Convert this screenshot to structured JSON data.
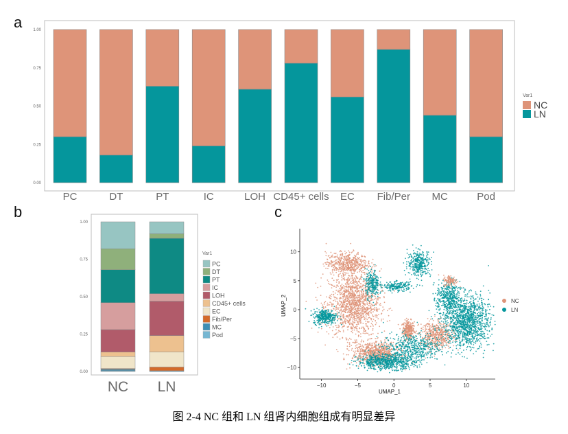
{
  "caption": "图 2-4 NC 组和 LN 组肾内细胞组成有明显差异",
  "colors": {
    "NC": "#DE9479",
    "LN": "#05969C",
    "grid_bg": "#ffffff"
  },
  "chart_data": [
    {
      "panel": "a",
      "type": "bar",
      "stacked": true,
      "categories": [
        "PC",
        "DT",
        "PT",
        "IC",
        "LOH",
        "CD45+ cells",
        "EC",
        "Fib/Per",
        "MC",
        "Pod"
      ],
      "series": [
        {
          "name": "LN",
          "color": "#05969C",
          "values": [
            0.3,
            0.18,
            0.63,
            0.24,
            0.61,
            0.78,
            0.56,
            0.87,
            0.44,
            0.3
          ]
        },
        {
          "name": "NC",
          "color": "#DE9479",
          "values": [
            0.7,
            0.82,
            0.37,
            0.76,
            0.39,
            0.22,
            0.44,
            0.13,
            0.56,
            0.7
          ]
        }
      ],
      "yticks": [
        "0.00",
        "0.25",
        "0.50",
        "0.75",
        "1.00"
      ],
      "ylim": [
        0,
        1
      ],
      "legend_title": "Var1",
      "legend_entries": [
        "NC",
        "LN"
      ],
      "legend_position": "right"
    },
    {
      "panel": "b",
      "type": "bar",
      "stacked": true,
      "categories": [
        "NC",
        "LN"
      ],
      "series": [
        {
          "name": "Pod",
          "color": "#76B7D2",
          "values": [
            0.005,
            0.0
          ]
        },
        {
          "name": "MC",
          "color": "#3E8FB5",
          "values": [
            0.01,
            0.005
          ]
        },
        {
          "name": "Fib/Per",
          "color": "#D46A29",
          "values": [
            0.005,
            0.025
          ]
        },
        {
          "name": "EC",
          "color": "#F0E5C9",
          "values": [
            0.08,
            0.1
          ]
        },
        {
          "name": "CD45+ cells",
          "color": "#EDC18F",
          "values": [
            0.03,
            0.11
          ]
        },
        {
          "name": "LOH",
          "color": "#B15B6A",
          "values": [
            0.15,
            0.23
          ]
        },
        {
          "name": "IC",
          "color": "#D69E9E",
          "values": [
            0.18,
            0.05
          ]
        },
        {
          "name": "PT",
          "color": "#0E8A84",
          "values": [
            0.22,
            0.37
          ]
        },
        {
          "name": "DT",
          "color": "#8FB07B",
          "values": [
            0.14,
            0.03
          ]
        },
        {
          "name": "PC",
          "color": "#97C5C2",
          "values": [
            0.18,
            0.08
          ]
        }
      ],
      "yticks": [
        "0.00",
        "0.25",
        "0.50",
        "0.75",
        "1.00"
      ],
      "ylim": [
        0,
        1
      ],
      "legend_title": "Var1",
      "legend_entries": [
        "PC",
        "DT",
        "PT",
        "IC",
        "LOH",
        "CD45+ cells",
        "EC",
        "Fib/Per",
        "MC",
        "Pod"
      ],
      "legend_position": "right"
    },
    {
      "panel": "c",
      "type": "scatter",
      "xlabel": "UMAP_1",
      "ylabel": "UMAP_2",
      "xticks": [
        -10,
        -5,
        0,
        5,
        10
      ],
      "yticks": [
        -10,
        -5,
        0,
        5,
        10
      ],
      "xlim": [
        -13,
        14
      ],
      "ylim": [
        -12,
        14
      ],
      "legend_entries": [
        "NC",
        "LN"
      ],
      "legend_position": "right",
      "clusters": [
        {
          "group": "NC",
          "cx": 2.0,
          "cy": -3.5,
          "sx": 0.5,
          "sy": 1.0,
          "n": 300
        },
        {
          "group": "NC",
          "cx": -5.5,
          "cy": 1.0,
          "sx": 2.2,
          "sy": 3.5,
          "n": 1400
        },
        {
          "group": "LN",
          "cx": -9.5,
          "cy": -1.2,
          "sx": 1.0,
          "sy": 0.8,
          "n": 350
        },
        {
          "group": "NC",
          "cx": -6.5,
          "cy": 8.0,
          "sx": 1.8,
          "sy": 1.2,
          "n": 500
        },
        {
          "group": "LN",
          "cx": -3.0,
          "cy": 4.5,
          "sx": 0.6,
          "sy": 1.5,
          "n": 250
        },
        {
          "group": "NC",
          "cx": -2.5,
          "cy": -7.5,
          "sx": 2.0,
          "sy": 1.2,
          "n": 700
        },
        {
          "group": "LN",
          "cx": -1.0,
          "cy": -9.0,
          "sx": 2.5,
          "sy": 0.8,
          "n": 700
        },
        {
          "group": "LN",
          "cx": 3.5,
          "cy": 8.0,
          "sx": 1.0,
          "sy": 1.4,
          "n": 350
        },
        {
          "group": "LN",
          "cx": 0.5,
          "cy": 4.0,
          "sx": 1.2,
          "sy": 0.5,
          "n": 200
        },
        {
          "group": "NC",
          "cx": 6.0,
          "cy": -4.5,
          "sx": 1.5,
          "sy": 1.5,
          "n": 500
        },
        {
          "group": "LN",
          "cx": 10.0,
          "cy": -2.0,
          "sx": 2.0,
          "sy": 2.8,
          "n": 1300
        },
        {
          "group": "LN",
          "cx": 7.5,
          "cy": 2.0,
          "sx": 1.0,
          "sy": 1.8,
          "n": 400
        },
        {
          "group": "NC",
          "cx": 7.8,
          "cy": 5.0,
          "sx": 0.6,
          "sy": 0.6,
          "n": 120
        },
        {
          "group": "LN",
          "cx": 2.5,
          "cy": -6.5,
          "sx": 2.5,
          "sy": 1.5,
          "n": 500
        }
      ]
    }
  ]
}
